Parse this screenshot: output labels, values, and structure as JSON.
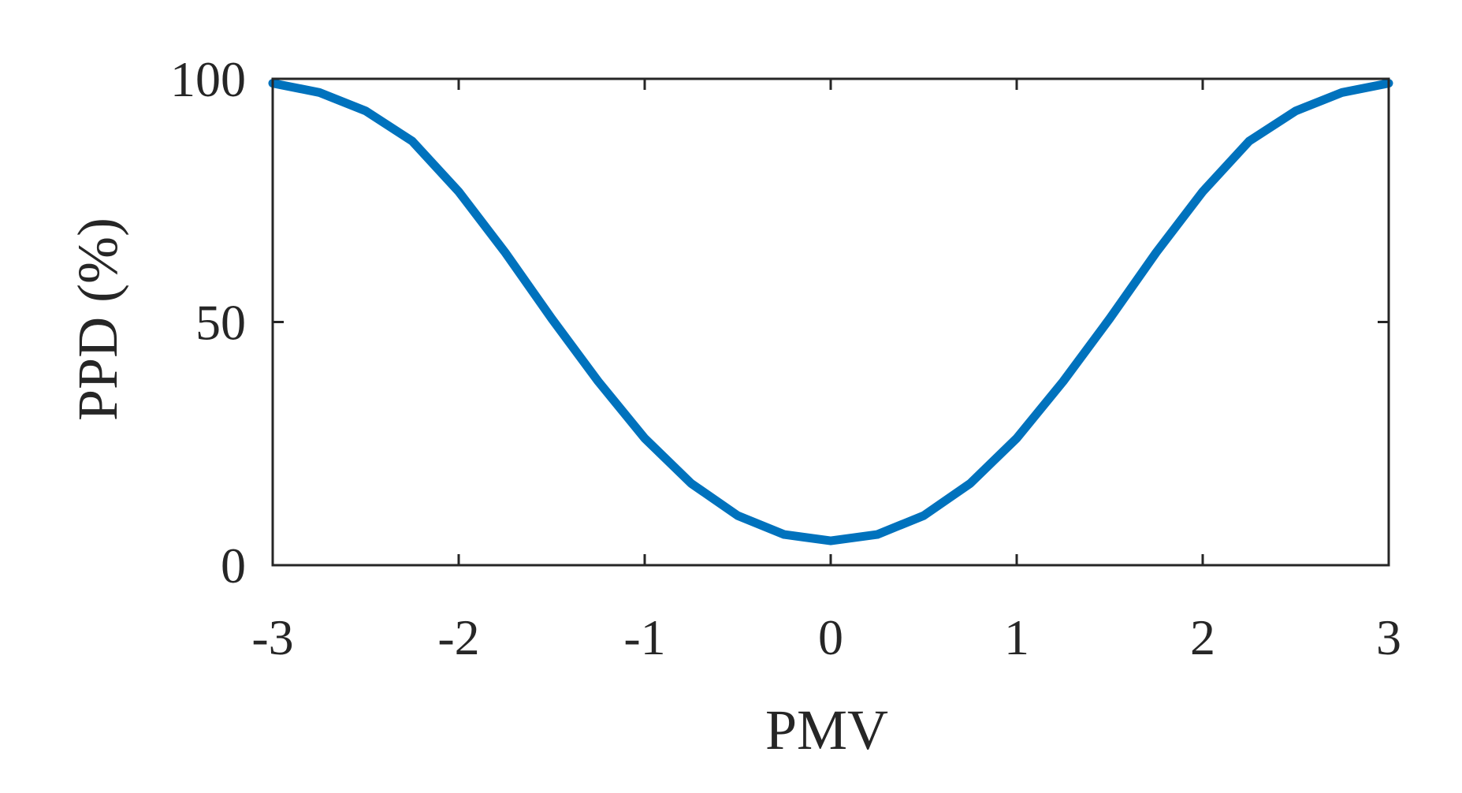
{
  "chart_data": {
    "type": "line",
    "title": "",
    "xlabel": "PMV",
    "ylabel": "PPD (%)",
    "xlim": [
      -3,
      3
    ],
    "ylim": [
      0,
      100
    ],
    "xticks": [
      "-3",
      "-2",
      "-1",
      "0",
      "1",
      "2",
      "3"
    ],
    "yticks": [
      "0",
      "50",
      "100"
    ],
    "grid": false,
    "legend": "none",
    "series": [
      {
        "color": "#0072BD",
        "x": [
          -3.0,
          -2.75,
          -2.5,
          -2.25,
          -2.0,
          -1.75,
          -1.5,
          -1.25,
          -1.0,
          -0.75,
          -0.5,
          -0.25,
          0.0,
          0.25,
          0.5,
          0.75,
          1.0,
          1.25,
          1.5,
          1.75,
          2.0,
          2.25,
          2.5,
          2.75,
          3.0
        ],
        "y": [
          99.1,
          97.2,
          93.4,
          87.2,
          76.8,
          64.3,
          50.7,
          37.8,
          26.1,
          16.8,
          10.2,
          6.3,
          5.0,
          6.3,
          10.2,
          16.8,
          26.1,
          37.8,
          50.7,
          64.3,
          76.8,
          87.2,
          93.4,
          97.2,
          99.1
        ]
      }
    ]
  }
}
